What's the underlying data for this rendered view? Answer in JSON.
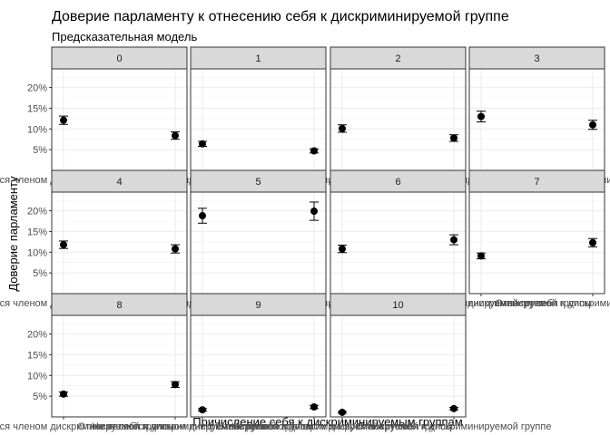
{
  "chart_data": {
    "type": "scatter",
    "title": "Доверие парламенту к отнесению себя к дискриминируемой группе",
    "subtitle": "Предсказательная модель",
    "xlabel": "Причисление себя к дискриминируемым группам",
    "ylabel": "Доверие парламенту",
    "categories": [
      "Не является членом дискриминируемой группы",
      "Относит себя к дискриминируемой группе"
    ],
    "yticks": [
      0.05,
      0.1,
      0.15,
      0.2
    ],
    "ytick_labels": [
      "5%",
      "10%",
      "15%",
      "20%"
    ],
    "ylim": [
      0.0,
      0.245
    ],
    "grid": true,
    "facets": [
      {
        "label": "0",
        "points": [
          {
            "y": 0.121,
            "lo": 0.111,
            "hi": 0.131
          },
          {
            "y": 0.084,
            "lo": 0.075,
            "hi": 0.093
          }
        ]
      },
      {
        "label": "1",
        "points": [
          {
            "y": 0.064,
            "lo": 0.058,
            "hi": 0.07
          },
          {
            "y": 0.047,
            "lo": 0.042,
            "hi": 0.052
          }
        ]
      },
      {
        "label": "2",
        "points": [
          {
            "y": 0.101,
            "lo": 0.092,
            "hi": 0.11
          },
          {
            "y": 0.078,
            "lo": 0.07,
            "hi": 0.086
          }
        ]
      },
      {
        "label": "3",
        "points": [
          {
            "y": 0.13,
            "lo": 0.117,
            "hi": 0.143
          },
          {
            "y": 0.11,
            "lo": 0.099,
            "hi": 0.121
          }
        ]
      },
      {
        "label": "4",
        "points": [
          {
            "y": 0.118,
            "lo": 0.109,
            "hi": 0.127
          },
          {
            "y": 0.108,
            "lo": 0.098,
            "hi": 0.118
          }
        ]
      },
      {
        "label": "5",
        "points": [
          {
            "y": 0.188,
            "lo": 0.17,
            "hi": 0.206
          },
          {
            "y": 0.199,
            "lo": 0.177,
            "hi": 0.221
          }
        ]
      },
      {
        "label": "6",
        "points": [
          {
            "y": 0.108,
            "lo": 0.099,
            "hi": 0.117
          },
          {
            "y": 0.13,
            "lo": 0.118,
            "hi": 0.142
          }
        ]
      },
      {
        "label": "7",
        "points": [
          {
            "y": 0.091,
            "lo": 0.084,
            "hi": 0.098
          },
          {
            "y": 0.123,
            "lo": 0.113,
            "hi": 0.133
          }
        ]
      },
      {
        "label": "8",
        "points": [
          {
            "y": 0.055,
            "lo": 0.05,
            "hi": 0.06
          },
          {
            "y": 0.078,
            "lo": 0.071,
            "hi": 0.085
          }
        ]
      },
      {
        "label": "9",
        "points": [
          {
            "y": 0.017,
            "lo": 0.014,
            "hi": 0.02
          },
          {
            "y": 0.024,
            "lo": 0.02,
            "hi": 0.028
          }
        ]
      },
      {
        "label": "10",
        "points": [
          {
            "y": 0.011,
            "lo": 0.009,
            "hi": 0.013
          },
          {
            "y": 0.02,
            "lo": 0.017,
            "hi": 0.023
          }
        ]
      }
    ]
  }
}
